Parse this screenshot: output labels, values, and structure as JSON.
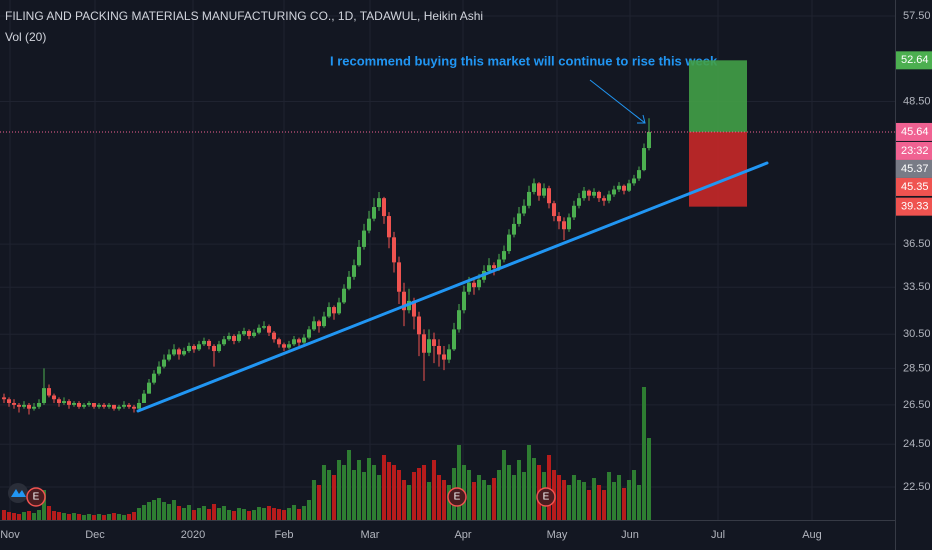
{
  "chart_data": {
    "type": "candlestick",
    "title": "FILING AND PACKING MATERIALS MANUFACTURING CO., 1D, TADAWUL, Heikin Ashi",
    "volume_label": "Vol (20)",
    "annotation": "I recommend buying this market will continue to rise this week",
    "log_scale": true,
    "grid": true,
    "up_color": "#4caf50",
    "down_color": "#ef5350",
    "volume_up_color": "#2e7d32",
    "volume_down_color": "#b71c1c",
    "ylim": [
      21.07,
      59.36
    ],
    "yticks": [
      {
        "value": 22.5,
        "label": "22.50"
      },
      {
        "value": 24.5,
        "label": "24.50"
      },
      {
        "value": 26.5,
        "label": "26.50"
      },
      {
        "value": 28.5,
        "label": "28.50"
      },
      {
        "value": 30.5,
        "label": "30.50"
      },
      {
        "value": 33.5,
        "label": "33.50"
      },
      {
        "value": 36.5,
        "label": "36.50"
      },
      {
        "value": 48.5,
        "label": "48.50"
      },
      {
        "value": 57.5,
        "label": "57.50"
      }
    ],
    "xlim": [
      -0.8,
      178.2
    ],
    "xticks": [
      {
        "value": 1.2,
        "label": "Nov"
      },
      {
        "value": 18.2,
        "label": "Dec"
      },
      {
        "value": 37.8,
        "label": "2020"
      },
      {
        "value": 56,
        "label": "Feb"
      },
      {
        "value": 73.2,
        "label": "Mar"
      },
      {
        "value": 91.8,
        "label": "Apr"
      },
      {
        "value": 110.6,
        "label": "May"
      },
      {
        "value": 125.2,
        "label": "Jun"
      },
      {
        "value": 142.8,
        "label": "Jul"
      },
      {
        "value": 161.6,
        "label": "Aug"
      }
    ],
    "vlim": [
      0,
      140
    ],
    "candles": [
      [
        26.9,
        27.1,
        26.6,
        26.8
      ],
      [
        26.8,
        26.9,
        26.4,
        26.6
      ],
      [
        26.6,
        26.8,
        26.3,
        26.5
      ],
      [
        26.5,
        26.6,
        26.1,
        26.4
      ],
      [
        26.4,
        26.7,
        26.3,
        26.5
      ],
      [
        26.5,
        26.6,
        26.0,
        26.3
      ],
      [
        26.3,
        26.6,
        26.2,
        26.4
      ],
      [
        26.4,
        26.8,
        26.3,
        26.6
      ],
      [
        26.6,
        28.5,
        26.5,
        27.4
      ],
      [
        27.4,
        27.6,
        26.9,
        27.0
      ],
      [
        27.0,
        27.1,
        26.6,
        26.8
      ],
      [
        26.8,
        26.9,
        26.4,
        26.6
      ],
      [
        26.6,
        26.9,
        26.5,
        26.7
      ],
      [
        26.7,
        26.8,
        26.3,
        26.5
      ],
      [
        26.5,
        26.7,
        26.4,
        26.6
      ],
      [
        26.6,
        26.7,
        26.3,
        26.4
      ],
      [
        26.4,
        26.6,
        26.3,
        26.5
      ],
      [
        26.5,
        26.7,
        26.4,
        26.6
      ],
      [
        26.6,
        26.6,
        26.3,
        26.4
      ],
      [
        26.4,
        26.6,
        26.3,
        26.5
      ],
      [
        26.5,
        26.6,
        26.3,
        26.4
      ],
      [
        26.4,
        26.6,
        26.3,
        26.5
      ],
      [
        26.5,
        26.5,
        26.2,
        26.3
      ],
      [
        26.3,
        26.5,
        26.2,
        26.4
      ],
      [
        26.4,
        26.7,
        26.3,
        26.5
      ],
      [
        26.5,
        26.6,
        26.3,
        26.4
      ],
      [
        26.4,
        26.5,
        26.1,
        26.3
      ],
      [
        26.3,
        26.8,
        26.3,
        26.6
      ],
      [
        26.6,
        27.3,
        26.6,
        27.1
      ],
      [
        27.1,
        27.9,
        27.1,
        27.7
      ],
      [
        27.7,
        28.4,
        27.6,
        28.2
      ],
      [
        28.2,
        28.9,
        28.1,
        28.6
      ],
      [
        28.6,
        29.3,
        28.5,
        29.0
      ],
      [
        29.0,
        29.6,
        28.9,
        29.3
      ],
      [
        29.3,
        29.9,
        29.2,
        29.6
      ],
      [
        29.6,
        29.7,
        29.0,
        29.3
      ],
      [
        29.3,
        29.7,
        29.2,
        29.5
      ],
      [
        29.5,
        30.0,
        29.4,
        29.8
      ],
      [
        29.8,
        29.9,
        29.4,
        29.6
      ],
      [
        29.6,
        30.1,
        29.5,
        29.9
      ],
      [
        29.9,
        30.3,
        29.8,
        30.1
      ],
      [
        30.1,
        30.2,
        29.6,
        29.8
      ],
      [
        29.8,
        29.9,
        28.6,
        29.5
      ],
      [
        29.5,
        30.1,
        29.4,
        29.9
      ],
      [
        29.9,
        30.4,
        29.8,
        30.2
      ],
      [
        30.2,
        30.6,
        30.1,
        30.4
      ],
      [
        30.4,
        30.5,
        29.9,
        30.1
      ],
      [
        30.1,
        30.7,
        30.0,
        30.5
      ],
      [
        30.5,
        30.9,
        30.4,
        30.7
      ],
      [
        30.7,
        30.8,
        30.2,
        30.4
      ],
      [
        30.4,
        30.8,
        30.3,
        30.6
      ],
      [
        30.6,
        31.1,
        30.5,
        30.9
      ],
      [
        30.9,
        31.3,
        30.8,
        31.0
      ],
      [
        31.0,
        31.1,
        30.4,
        30.6
      ],
      [
        30.6,
        30.7,
        30.0,
        30.2
      ],
      [
        30.2,
        30.3,
        29.7,
        29.9
      ],
      [
        29.9,
        30.0,
        29.5,
        29.7
      ],
      [
        29.7,
        30.1,
        29.6,
        29.9
      ],
      [
        29.9,
        30.4,
        29.8,
        30.2
      ],
      [
        30.2,
        30.3,
        29.8,
        30.0
      ],
      [
        30.0,
        30.5,
        29.9,
        30.3
      ],
      [
        30.3,
        31.0,
        30.2,
        30.8
      ],
      [
        30.8,
        31.6,
        30.7,
        31.3
      ],
      [
        31.3,
        31.4,
        30.6,
        31.0
      ],
      [
        31.0,
        31.9,
        30.9,
        31.6
      ],
      [
        31.6,
        32.5,
        31.5,
        32.2
      ],
      [
        32.2,
        32.3,
        31.4,
        31.8
      ],
      [
        31.8,
        32.8,
        31.7,
        32.5
      ],
      [
        32.5,
        33.7,
        32.4,
        33.4
      ],
      [
        33.4,
        34.6,
        33.3,
        34.2
      ],
      [
        34.2,
        35.4,
        34.0,
        35.0
      ],
      [
        35.0,
        36.8,
        34.9,
        36.3
      ],
      [
        36.3,
        38.0,
        36.1,
        37.5
      ],
      [
        37.5,
        39.0,
        37.3,
        38.4
      ],
      [
        38.4,
        40.0,
        38.2,
        39.3
      ],
      [
        39.3,
        40.5,
        39.0,
        40.0
      ],
      [
        40.0,
        40.1,
        38.0,
        38.6
      ],
      [
        38.6,
        38.9,
        36.2,
        37.0
      ],
      [
        37.0,
        37.4,
        34.5,
        35.2
      ],
      [
        35.2,
        35.6,
        32.4,
        33.2
      ],
      [
        33.2,
        33.8,
        31.0,
        32.0
      ],
      [
        32.0,
        33.4,
        31.8,
        32.6
      ],
      [
        32.6,
        32.8,
        30.8,
        31.6
      ],
      [
        31.6,
        31.9,
        29.2,
        30.5
      ],
      [
        30.5,
        30.8,
        27.8,
        29.4
      ],
      [
        29.4,
        30.8,
        29.2,
        30.2
      ],
      [
        30.2,
        30.6,
        28.8,
        29.8
      ],
      [
        29.8,
        30.2,
        28.6,
        29.3
      ],
      [
        29.3,
        29.8,
        28.4,
        29.0
      ],
      [
        29.0,
        29.9,
        28.8,
        29.6
      ],
      [
        29.6,
        31.2,
        29.5,
        30.8
      ],
      [
        30.8,
        32.4,
        30.6,
        32.0
      ],
      [
        32.0,
        33.6,
        31.8,
        33.2
      ],
      [
        33.2,
        34.2,
        33.0,
        33.8
      ],
      [
        33.8,
        34.0,
        33.0,
        33.5
      ],
      [
        33.5,
        34.4,
        33.3,
        34.0
      ],
      [
        34.0,
        35.0,
        33.8,
        34.6
      ],
      [
        34.6,
        35.5,
        34.4,
        35.0
      ],
      [
        35.0,
        35.2,
        34.3,
        34.8
      ],
      [
        34.8,
        35.8,
        34.6,
        35.4
      ],
      [
        35.4,
        36.4,
        35.2,
        36.0
      ],
      [
        36.0,
        37.6,
        35.8,
        37.2
      ],
      [
        37.2,
        38.5,
        37.0,
        38.0
      ],
      [
        38.0,
        39.3,
        37.8,
        38.8
      ],
      [
        38.8,
        39.9,
        38.6,
        39.4
      ],
      [
        39.4,
        41.0,
        39.2,
        40.5
      ],
      [
        40.5,
        41.6,
        40.3,
        41.2
      ],
      [
        41.2,
        41.3,
        39.8,
        40.2
      ],
      [
        40.2,
        41.2,
        40.0,
        40.8
      ],
      [
        40.8,
        41.0,
        39.2,
        39.6
      ],
      [
        39.6,
        39.8,
        38.2,
        38.6
      ],
      [
        38.6,
        38.9,
        37.6,
        38.2
      ],
      [
        38.2,
        38.5,
        36.8,
        37.6
      ],
      [
        37.6,
        38.8,
        37.4,
        38.5
      ],
      [
        38.5,
        39.8,
        38.3,
        39.4
      ],
      [
        39.4,
        40.4,
        39.2,
        40.0
      ],
      [
        40.0,
        40.9,
        39.8,
        40.6
      ],
      [
        40.6,
        40.7,
        39.8,
        40.2
      ],
      [
        40.2,
        40.8,
        40.0,
        40.5
      ],
      [
        40.5,
        40.6,
        39.7,
        40.0
      ],
      [
        40.0,
        40.2,
        39.4,
        39.8
      ],
      [
        39.8,
        40.6,
        39.6,
        40.3
      ],
      [
        40.3,
        41.0,
        40.1,
        40.7
      ],
      [
        40.7,
        41.3,
        40.5,
        41.0
      ],
      [
        41.0,
        41.1,
        40.3,
        40.6
      ],
      [
        40.6,
        41.5,
        40.5,
        41.2
      ],
      [
        41.2,
        41.9,
        41.0,
        41.6
      ],
      [
        41.6,
        42.6,
        41.4,
        42.3
      ],
      [
        42.3,
        44.6,
        42.2,
        44.2
      ],
      [
        44.2,
        46.9,
        44.0,
        45.64
      ]
    ],
    "volume": [
      10,
      8,
      7,
      6,
      8,
      9,
      7,
      10,
      30,
      14,
      9,
      8,
      7,
      6,
      7,
      6,
      5,
      6,
      5,
      6,
      5,
      6,
      7,
      6,
      5,
      6,
      8,
      12,
      15,
      18,
      20,
      22,
      18,
      16,
      20,
      14,
      12,
      15,
      10,
      12,
      14,
      11,
      16,
      12,
      14,
      10,
      9,
      12,
      11,
      9,
      10,
      13,
      12,
      14,
      12,
      11,
      10,
      12,
      15,
      11,
      14,
      20,
      40,
      35,
      55,
      50,
      45,
      60,
      55,
      70,
      50,
      60,
      48,
      62,
      55,
      45,
      65,
      58,
      55,
      50,
      40,
      35,
      48,
      52,
      55,
      38,
      60,
      45,
      40,
      35,
      52,
      75,
      55,
      50,
      38,
      45,
      40,
      35,
      42,
      50,
      70,
      55,
      45,
      60,
      48,
      75,
      62,
      55,
      48,
      65,
      50,
      45,
      40,
      35,
      45,
      40,
      38,
      30,
      42,
      35,
      30,
      48,
      38,
      45,
      32,
      40,
      50,
      35,
      133,
      82
    ],
    "trendline": {
      "x": [
        26.8,
        152.6
      ],
      "values": [
        26.18,
        42.9
      ],
      "color": "#2196f3"
    },
    "position": {
      "x": [
        137,
        148.6
      ],
      "entry": 45.64,
      "target": 52.64,
      "stop": 39.33
    },
    "events": [
      {
        "label": "E",
        "x": 6.4
      },
      {
        "label": "E",
        "x": 90.6
      },
      {
        "label": "E",
        "x": 108.4
      }
    ],
    "price_tags": [
      {
        "value": 52.64,
        "color": "#4caf50"
      },
      {
        "value": 45.64,
        "color": "#f06292",
        "countdown": "23:32"
      },
      {
        "value": 45.37,
        "color": "#787b86"
      },
      {
        "value": 45.35,
        "color": "#ef5350"
      },
      {
        "value": 39.33,
        "color": "#ef5350"
      }
    ]
  }
}
